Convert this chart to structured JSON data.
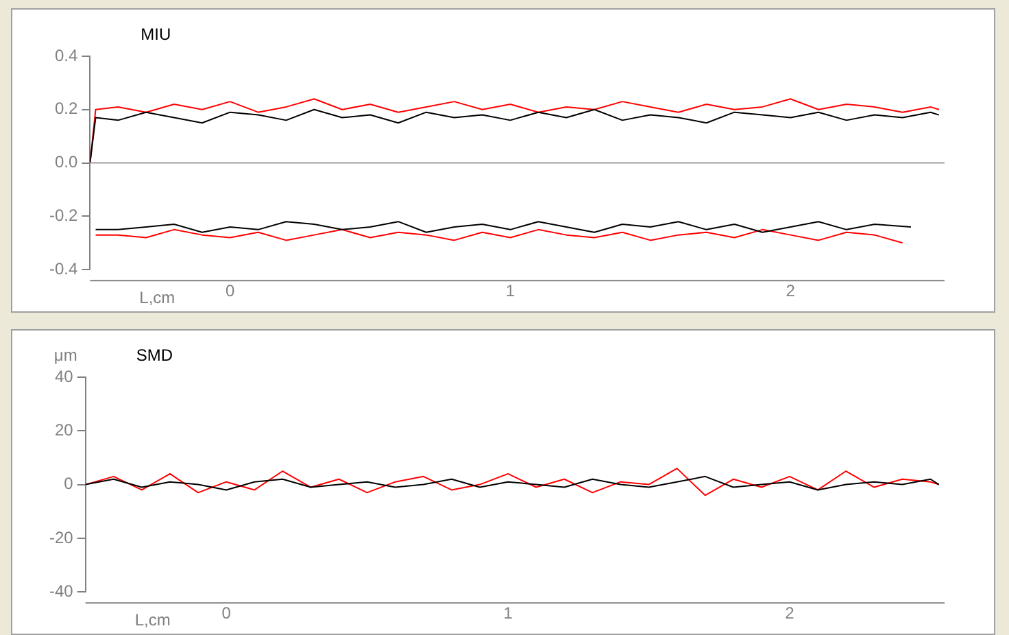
{
  "chart_data": [
    {
      "type": "line",
      "title": "MIU",
      "xlabel": "L,cm",
      "xlim": [
        -0.5,
        2.55
      ],
      "xticks": [
        0,
        1,
        2
      ],
      "ylim": [
        -0.4,
        0.4
      ],
      "yticks": [
        -0.4,
        -0.2,
        {
          "value": 0,
          "label": "0.0"
        },
        0.2,
        0.4
      ],
      "grid": false,
      "legend": false,
      "marker": "none",
      "ref_lines": [
        {
          "axis": "y",
          "value": 0,
          "color": "#a0a0a0"
        }
      ],
      "series": [
        {
          "color": "#000000",
          "x": [
            -0.5,
            -0.48,
            -0.4,
            -0.3,
            -0.2,
            -0.1,
            0,
            0.1,
            0.2,
            0.3,
            0.4,
            0.5,
            0.6,
            0.7,
            0.8,
            0.9,
            1,
            1.1,
            1.2,
            1.3,
            1.4,
            1.5,
            1.6,
            1.7,
            1.8,
            1.9,
            2,
            2.1,
            2.2,
            2.3,
            2.4,
            2.5,
            2.53
          ],
          "values": [
            0,
            0.17,
            0.16,
            0.19,
            0.17,
            0.15,
            0.19,
            0.18,
            0.16,
            0.2,
            0.17,
            0.18,
            0.15,
            0.19,
            0.17,
            0.18,
            0.16,
            0.19,
            0.17,
            0.2,
            0.16,
            0.18,
            0.17,
            0.15,
            0.19,
            0.18,
            0.17,
            0.19,
            0.16,
            0.18,
            0.17,
            0.19,
            0.18
          ]
        },
        {
          "color": "#000000",
          "x": [
            -0.48,
            -0.4,
            -0.3,
            -0.2,
            -0.1,
            0,
            0.1,
            0.2,
            0.3,
            0.4,
            0.5,
            0.6,
            0.7,
            0.8,
            0.9,
            1,
            1.1,
            1.2,
            1.3,
            1.4,
            1.5,
            1.6,
            1.7,
            1.8,
            1.9,
            2,
            2.1,
            2.2,
            2.3,
            2.43
          ],
          "values": [
            -0.25,
            -0.25,
            -0.24,
            -0.23,
            -0.26,
            -0.24,
            -0.25,
            -0.22,
            -0.23,
            -0.25,
            -0.24,
            -0.22,
            -0.26,
            -0.24,
            -0.23,
            -0.25,
            -0.22,
            -0.24,
            -0.26,
            -0.23,
            -0.24,
            -0.22,
            -0.25,
            -0.23,
            -0.26,
            -0.24,
            -0.22,
            -0.25,
            -0.23,
            -0.24
          ]
        },
        {
          "color": "#ff0000",
          "x": [
            -0.5,
            -0.48,
            -0.4,
            -0.3,
            -0.2,
            -0.1,
            0,
            0.1,
            0.2,
            0.3,
            0.4,
            0.5,
            0.6,
            0.7,
            0.8,
            0.9,
            1,
            1.1,
            1.2,
            1.3,
            1.4,
            1.5,
            1.6,
            1.7,
            1.8,
            1.9,
            2,
            2.1,
            2.2,
            2.3,
            2.4,
            2.5,
            2.53
          ],
          "values": [
            0,
            0.2,
            0.21,
            0.19,
            0.22,
            0.2,
            0.23,
            0.19,
            0.21,
            0.24,
            0.2,
            0.22,
            0.19,
            0.21,
            0.23,
            0.2,
            0.22,
            0.19,
            0.21,
            0.2,
            0.23,
            0.21,
            0.19,
            0.22,
            0.2,
            0.21,
            0.24,
            0.2,
            0.22,
            0.21,
            0.19,
            0.21,
            0.2
          ]
        },
        {
          "color": "#ff0000",
          "x": [
            -0.48,
            -0.4,
            -0.3,
            -0.2,
            -0.1,
            0,
            0.1,
            0.2,
            0.3,
            0.4,
            0.5,
            0.6,
            0.7,
            0.8,
            0.9,
            1,
            1.1,
            1.2,
            1.3,
            1.4,
            1.5,
            1.6,
            1.7,
            1.8,
            1.9,
            2,
            2.1,
            2.2,
            2.3,
            2.4
          ],
          "values": [
            -0.27,
            -0.27,
            -0.28,
            -0.25,
            -0.27,
            -0.28,
            -0.26,
            -0.29,
            -0.27,
            -0.25,
            -0.28,
            -0.26,
            -0.27,
            -0.29,
            -0.26,
            -0.28,
            -0.25,
            -0.27,
            -0.28,
            -0.26,
            -0.29,
            -0.27,
            -0.26,
            -0.28,
            -0.25,
            -0.27,
            -0.29,
            -0.26,
            -0.27,
            -0.3
          ]
        }
      ]
    },
    {
      "type": "line",
      "title": "SMD",
      "ylabel": "μm",
      "xlabel": "L,cm",
      "xlim": [
        -0.5,
        2.55
      ],
      "xticks": [
        0,
        1,
        2
      ],
      "ylim": [
        -40,
        40
      ],
      "yticks": [
        -40,
        -20,
        0,
        20,
        40
      ],
      "grid": false,
      "legend": false,
      "marker": "none",
      "series": [
        {
          "color": "#000000",
          "x": [
            -0.5,
            -0.4,
            -0.3,
            -0.2,
            -0.1,
            0,
            0.1,
            0.2,
            0.3,
            0.4,
            0.5,
            0.6,
            0.7,
            0.8,
            0.9,
            1,
            1.1,
            1.2,
            1.3,
            1.4,
            1.5,
            1.6,
            1.7,
            1.8,
            1.9,
            2,
            2.1,
            2.2,
            2.3,
            2.4,
            2.5,
            2.53
          ],
          "values": [
            0,
            2,
            -1,
            1,
            0,
            -2,
            1,
            2,
            -1,
            0,
            1,
            -1,
            0,
            2,
            -1,
            1,
            0,
            -1,
            2,
            0,
            -1,
            1,
            3,
            -1,
            0,
            1,
            -2,
            0,
            1,
            0,
            2,
            0
          ]
        },
        {
          "color": "#ff0000",
          "x": [
            -0.5,
            -0.4,
            -0.3,
            -0.2,
            -0.1,
            0,
            0.1,
            0.2,
            0.3,
            0.4,
            0.5,
            0.6,
            0.7,
            0.8,
            0.9,
            1,
            1.1,
            1.2,
            1.3,
            1.4,
            1.5,
            1.6,
            1.7,
            1.8,
            1.9,
            2,
            2.1,
            2.2,
            2.3,
            2.4,
            2.5,
            2.53
          ],
          "values": [
            0,
            3,
            -2,
            4,
            -3,
            1,
            -2,
            5,
            -1,
            2,
            -3,
            1,
            3,
            -2,
            0,
            4,
            -1,
            2,
            -3,
            1,
            0,
            6,
            -4,
            2,
            -1,
            3,
            -2,
            5,
            -1,
            2,
            1,
            0
          ]
        }
      ]
    }
  ]
}
